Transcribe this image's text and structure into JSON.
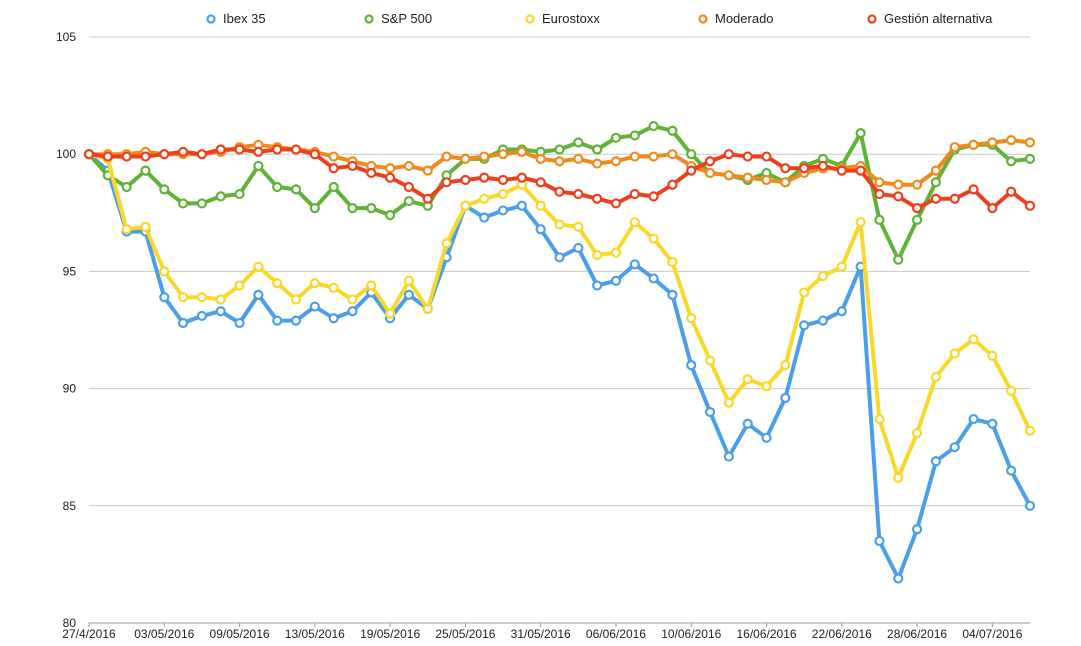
{
  "chart_data": {
    "type": "line",
    "title": "",
    "xlabel": "",
    "ylabel": "",
    "ylim": [
      80,
      105
    ],
    "yticks": [
      80,
      85,
      90,
      95,
      100,
      105
    ],
    "grid": true,
    "legend_position": "top",
    "x_tick_labels": [
      "27/4/2016",
      "03/05/2016",
      "09/05/2016",
      "13/05/2016",
      "19/05/2016",
      "25/05/2016",
      "31/05/2016",
      "06/06/2016",
      "10/06/2016",
      "16/06/2016",
      "22/06/2016",
      "28/06/2016",
      "04/07/2016"
    ],
    "x_tick_positions": [
      0,
      4,
      8,
      12,
      16,
      20,
      24,
      28,
      32,
      36,
      40,
      44,
      48
    ],
    "dates": [
      "27/4/2016",
      "28/4/2016",
      "29/4/2016",
      "02/05/2016",
      "03/05/2016",
      "04/05/2016",
      "05/05/2016",
      "06/05/2016",
      "09/05/2016",
      "10/05/2016",
      "11/05/2016",
      "12/05/2016",
      "13/05/2016",
      "16/05/2016",
      "17/05/2016",
      "18/05/2016",
      "19/05/2016",
      "20/05/2016",
      "23/05/2016",
      "24/05/2016",
      "25/05/2016",
      "26/05/2016",
      "27/05/2016",
      "30/05/2016",
      "31/05/2016",
      "01/06/2016",
      "02/06/2016",
      "03/06/2016",
      "06/06/2016",
      "07/06/2016",
      "08/06/2016",
      "09/06/2016",
      "10/06/2016",
      "13/06/2016",
      "14/06/2016",
      "15/06/2016",
      "16/06/2016",
      "17/06/2016",
      "20/06/2016",
      "21/06/2016",
      "22/06/2016",
      "23/06/2016",
      "24/06/2016",
      "27/06/2016",
      "28/06/2016",
      "29/06/2016",
      "30/06/2016",
      "01/07/2016",
      "04/07/2016",
      "05/07/2016",
      "06/07/2016"
    ],
    "series": [
      {
        "name": "Ibex 35",
        "color": "#4a9eea",
        "values": [
          100.0,
          99.3,
          96.7,
          96.7,
          93.9,
          92.8,
          93.1,
          93.3,
          92.8,
          94.0,
          92.9,
          92.9,
          93.5,
          93.0,
          93.3,
          94.1,
          93.0,
          94.0,
          93.4,
          95.6,
          97.8,
          97.3,
          97.6,
          97.8,
          96.8,
          95.6,
          96.0,
          94.4,
          94.6,
          95.3,
          94.7,
          94.0,
          91.0,
          89.0,
          87.1,
          88.5,
          87.9,
          89.6,
          92.7,
          92.9,
          93.3,
          95.2,
          83.5,
          81.9,
          84.0,
          86.9,
          87.5,
          88.7,
          88.5,
          86.5,
          85.0
        ]
      },
      {
        "name": "S&P 500",
        "color": "#5fb336",
        "values": [
          100.0,
          99.1,
          98.6,
          99.3,
          98.5,
          97.9,
          97.9,
          98.2,
          98.3,
          99.5,
          98.6,
          98.5,
          97.7,
          98.6,
          97.7,
          97.7,
          97.4,
          98.0,
          97.8,
          99.1,
          99.8,
          99.8,
          100.2,
          100.2,
          100.1,
          100.2,
          100.5,
          100.2,
          100.7,
          100.8,
          101.2,
          101.0,
          100.0,
          99.2,
          99.1,
          98.9,
          99.2,
          98.8,
          99.5,
          99.8,
          99.5,
          100.9,
          97.2,
          95.5,
          97.2,
          98.8,
          100.2,
          100.4,
          100.4,
          99.7,
          99.8
        ]
      },
      {
        "name": "Eurostoxx",
        "color": "#f7d82b",
        "values": [
          100.0,
          99.8,
          96.8,
          96.9,
          95.0,
          93.9,
          93.9,
          93.8,
          94.4,
          95.2,
          94.5,
          93.8,
          94.5,
          94.3,
          93.8,
          94.4,
          93.2,
          94.6,
          93.4,
          96.2,
          97.8,
          98.1,
          98.3,
          98.7,
          97.8,
          97.0,
          96.9,
          95.7,
          95.8,
          97.1,
          96.4,
          95.4,
          93.0,
          91.2,
          89.4,
          90.4,
          90.1,
          91.0,
          94.1,
          94.8,
          95.2,
          97.1,
          88.7,
          86.2,
          88.1,
          90.5,
          91.5,
          92.1,
          91.4,
          89.9,
          88.2
        ]
      },
      {
        "name": "Moderado",
        "color": "#f08a1c",
        "values": [
          100.0,
          100.0,
          100.0,
          100.1,
          100.0,
          100.0,
          100.0,
          100.1,
          100.3,
          100.4,
          100.3,
          100.2,
          100.1,
          99.9,
          99.7,
          99.5,
          99.4,
          99.5,
          99.3,
          99.9,
          99.8,
          99.9,
          100.0,
          100.1,
          99.8,
          99.7,
          99.8,
          99.6,
          99.7,
          99.9,
          99.9,
          100.0,
          99.5,
          99.2,
          99.1,
          99.0,
          98.9,
          98.8,
          99.2,
          99.4,
          99.4,
          99.5,
          98.8,
          98.7,
          98.7,
          99.3,
          100.3,
          100.4,
          100.5,
          100.6,
          100.5
        ]
      },
      {
        "name": "Gestión alternativa",
        "color": "#ee3f1c",
        "values": [
          100.0,
          99.9,
          99.9,
          99.9,
          100.0,
          100.1,
          100.0,
          100.2,
          100.2,
          100.1,
          100.2,
          100.2,
          100.0,
          99.4,
          99.5,
          99.2,
          99.0,
          98.6,
          98.1,
          98.8,
          98.9,
          99.0,
          98.9,
          99.0,
          98.8,
          98.4,
          98.3,
          98.1,
          97.9,
          98.3,
          98.2,
          98.7,
          99.3,
          99.7,
          100.0,
          99.9,
          99.9,
          99.4,
          99.4,
          99.5,
          99.3,
          99.3,
          98.3,
          98.2,
          97.7,
          98.1,
          98.1,
          98.5,
          97.7,
          98.4,
          97.8
        ]
      }
    ]
  }
}
